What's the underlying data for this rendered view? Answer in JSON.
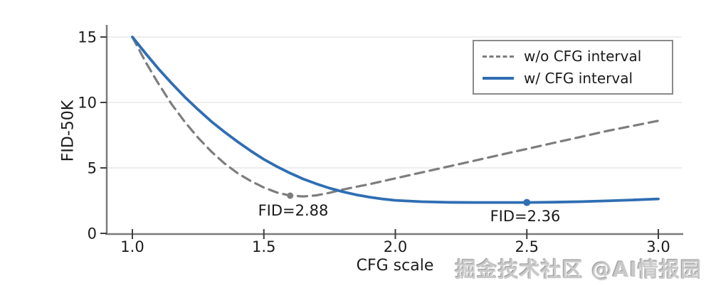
{
  "watermark": "掘金技术社区 @AI情报园",
  "colors": {
    "blue_line": "#2f6eb3",
    "gray_line": "#7d7d7d",
    "grid": "#e9e9e9",
    "spine": "#7a7a7a",
    "tick": "#3f3f3f",
    "text": "#1c1c1c",
    "legend_border": "#8a8a8a",
    "background": "#ffffff"
  },
  "chart_data": {
    "type": "line",
    "title": "",
    "xlabel": "CFG scale",
    "ylabel": "FID-50K",
    "xlim": [
      1.0,
      3.0
    ],
    "ylim": [
      0,
      15
    ],
    "xticks": [
      "1.0",
      "1.5",
      "2.0",
      "2.5",
      "3.0"
    ],
    "xtick_values": [
      1.0,
      1.5,
      2.0,
      2.5,
      3.0
    ],
    "yticks": [
      "0",
      "5",
      "10",
      "15"
    ],
    "ytick_values": [
      0,
      5,
      10,
      15
    ],
    "grid": "horizontal",
    "legend_position": "top-right",
    "series": [
      {
        "name": "w/o CFG interval",
        "style": "dashed",
        "color": "#7d7d7d",
        "x": [
          1.0,
          1.05,
          1.1,
          1.15,
          1.2,
          1.25,
          1.3,
          1.35,
          1.4,
          1.45,
          1.5,
          1.55,
          1.6,
          1.65,
          1.7,
          1.75,
          1.8,
          1.85,
          1.9,
          1.95,
          2.0,
          2.1,
          2.2,
          2.3,
          2.4,
          2.5,
          2.6,
          2.7,
          2.8,
          2.9,
          3.0
        ],
        "y": [
          15.0,
          13.1,
          11.4,
          9.85,
          8.5,
          7.3,
          6.25,
          5.35,
          4.6,
          4.0,
          3.5,
          3.12,
          2.88,
          2.82,
          2.9,
          3.1,
          3.35,
          3.55,
          3.75,
          3.98,
          4.2,
          4.65,
          5.1,
          5.55,
          6.0,
          6.45,
          6.9,
          7.35,
          7.8,
          8.2,
          8.6
        ],
        "marker": {
          "x": 1.6,
          "y": 2.88,
          "label": "FID=2.88"
        }
      },
      {
        "name": "w/ CFG interval",
        "style": "solid",
        "color": "#2f6eb3",
        "x": [
          1.0,
          1.05,
          1.1,
          1.15,
          1.2,
          1.25,
          1.3,
          1.35,
          1.4,
          1.45,
          1.5,
          1.55,
          1.6,
          1.65,
          1.7,
          1.75,
          1.8,
          1.85,
          1.9,
          1.95,
          2.0,
          2.1,
          2.2,
          2.3,
          2.4,
          2.5,
          2.6,
          2.7,
          2.8,
          2.9,
          3.0
        ],
        "y": [
          15.0,
          13.75,
          12.55,
          11.45,
          10.4,
          9.45,
          8.55,
          7.75,
          7.0,
          6.3,
          5.65,
          5.1,
          4.6,
          4.15,
          3.78,
          3.45,
          3.18,
          2.95,
          2.77,
          2.63,
          2.52,
          2.42,
          2.37,
          2.36,
          2.36,
          2.36,
          2.38,
          2.42,
          2.48,
          2.55,
          2.63
        ],
        "marker": {
          "x": 2.5,
          "y": 2.36,
          "label": "FID=2.36"
        }
      }
    ]
  }
}
